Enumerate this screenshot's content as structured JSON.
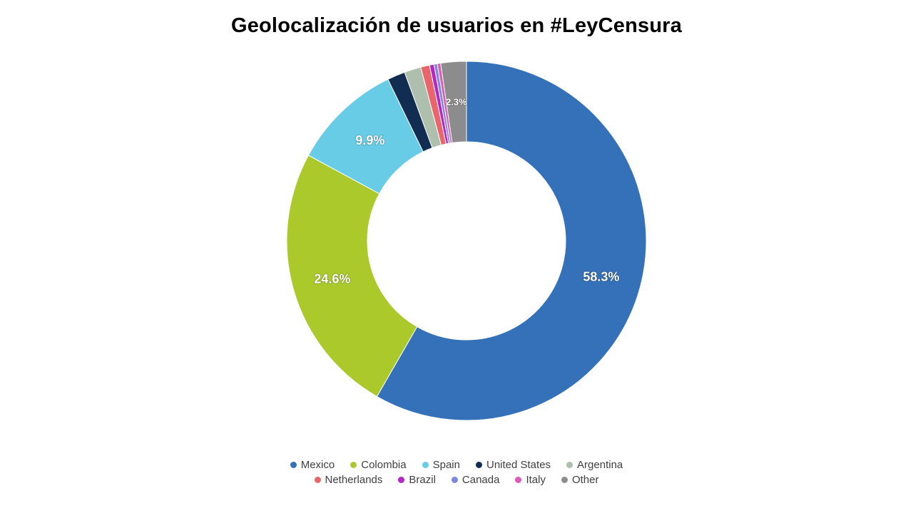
{
  "chart_data": {
    "type": "pie",
    "variant": "donut",
    "title": "Geolocalización de usuarios en #LeyCensura",
    "legend_position": "bottom",
    "categories": [
      "Mexico",
      "Colombia",
      "Spain",
      "United States",
      "Argentina",
      "Netherlands",
      "Brazil",
      "Canada",
      "Italy",
      "Other"
    ],
    "values": [
      58.3,
      24.6,
      9.9,
      1.6,
      1.5,
      0.8,
      0.4,
      0.3,
      0.3,
      2.3
    ],
    "colors": [
      "#3471B8",
      "#ACC92C",
      "#68CCE6",
      "#112D52",
      "#AEBFAE",
      "#E8666B",
      "#B626C6",
      "#7F88E0",
      "#DB5BB5",
      "#8C8C8C"
    ],
    "data_labels": [
      "58.3%",
      "24.6%",
      "9.9%",
      "",
      "",
      "",
      "",
      "",
      "",
      "2.3%"
    ]
  }
}
